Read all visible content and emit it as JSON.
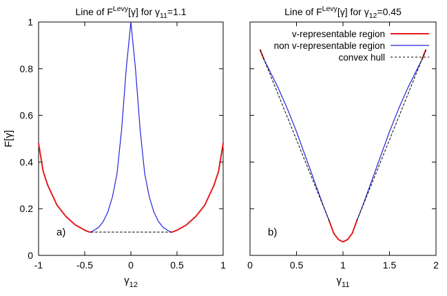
{
  "chart_data": [
    {
      "type": "line",
      "panel_tag": "a)",
      "title": {
        "pre": "Line of F",
        "sup": "Levy",
        "mid": "[γ] for γ",
        "sub": "11",
        "post": "=1.1"
      },
      "xlabel": {
        "main": "γ",
        "sub": "12"
      },
      "ylabel": "F[γ]",
      "xlim": [
        -1,
        1
      ],
      "ylim": [
        0,
        1
      ],
      "xticks": [
        -1,
        -0.5,
        0,
        0.5,
        1
      ],
      "xtick_labels": [
        "-1",
        "-0.5",
        "0",
        "0.5",
        "1"
      ],
      "yticks": [
        0,
        0.2,
        0.4,
        0.6,
        0.8,
        1
      ],
      "ytick_labels": [
        "0",
        "0.2",
        "0.4",
        "0.6",
        "0.8",
        "1"
      ],
      "series": [
        {
          "role": "v-representable",
          "color": "#e41a1c",
          "width": 2,
          "dash": "",
          "segments": [
            {
              "x": [
                -1.0,
                -0.95,
                -0.9,
                -0.8,
                -0.7,
                -0.6,
                -0.5,
                -0.45,
                -0.43
              ],
              "y": [
                0.48,
                0.36,
                0.3,
                0.215,
                0.165,
                0.13,
                0.108,
                0.1,
                0.1
              ]
            },
            {
              "x": [
                0.43,
                0.45,
                0.5,
                0.6,
                0.7,
                0.8,
                0.9,
                0.95,
                1.0
              ],
              "y": [
                0.1,
                0.1,
                0.108,
                0.13,
                0.165,
                0.215,
                0.3,
                0.36,
                0.48
              ]
            }
          ]
        },
        {
          "role": "non-v-representable",
          "color": "#2222dd",
          "width": 1.2,
          "dash": "",
          "segments": [
            {
              "x": [
                -0.43,
                -0.35,
                -0.3,
                -0.25,
                -0.2,
                -0.15,
                -0.1,
                -0.05,
                0.0,
                0.05,
                0.1,
                0.15,
                0.2,
                0.25,
                0.3,
                0.35,
                0.43
              ],
              "y": [
                0.1,
                0.12,
                0.145,
                0.185,
                0.25,
                0.35,
                0.54,
                0.8,
                1.0,
                0.8,
                0.54,
                0.35,
                0.25,
                0.185,
                0.145,
                0.12,
                0.1
              ]
            }
          ]
        },
        {
          "role": "convex-hull",
          "color": "#000000",
          "width": 1,
          "dash": "3,3",
          "segments": [
            {
              "x": [
                -0.43,
                0.43
              ],
              "y": [
                0.1,
                0.1
              ]
            }
          ]
        }
      ]
    },
    {
      "type": "line",
      "panel_tag": "b)",
      "title": {
        "pre": "Line of F",
        "sup": "Levy",
        "mid": "[γ] for γ",
        "sub": "12",
        "post": "=0.45"
      },
      "xlabel": {
        "main": "γ",
        "sub": "11"
      },
      "ylabel": "",
      "xlim": [
        0,
        2
      ],
      "ylim": [
        0,
        1
      ],
      "xticks": [
        0,
        0.5,
        1,
        1.5,
        2
      ],
      "xtick_labels": [
        "0",
        "0.5",
        "1",
        "1.5",
        "2"
      ],
      "yticks": [
        0,
        0.2,
        0.4,
        0.6,
        0.8,
        1
      ],
      "ytick_labels": [],
      "legend": {
        "position": "top-right",
        "entries": [
          {
            "label": "v-representable region",
            "color": "#e41a1c",
            "width": 2,
            "dash": ""
          },
          {
            "label": "non v-representable region",
            "color": "#2222dd",
            "width": 1.2,
            "dash": ""
          },
          {
            "label": "convex hull",
            "color": "#000000",
            "width": 1,
            "dash": "3,3"
          }
        ]
      },
      "series": [
        {
          "role": "v-representable",
          "color": "#e41a1c",
          "width": 2,
          "dash": "",
          "segments": [
            {
              "x": [
                0.11,
                0.13,
                0.15
              ],
              "y": [
                0.88,
                0.86,
                0.84
              ]
            },
            {
              "x": [
                0.85,
                0.9,
                0.95,
                1.0,
                1.05,
                1.1,
                1.15
              ],
              "y": [
                0.15,
                0.095,
                0.068,
                0.058,
                0.068,
                0.095,
                0.15
              ]
            },
            {
              "x": [
                1.85,
                1.87,
                1.89
              ],
              "y": [
                0.84,
                0.86,
                0.88
              ]
            }
          ]
        },
        {
          "role": "non-v-representable",
          "color": "#2222dd",
          "width": 1.2,
          "dash": "",
          "segments": [
            {
              "x": [
                0.15,
                0.2,
                0.3,
                0.4,
                0.5,
                0.6,
                0.7,
                0.8,
                0.85
              ],
              "y": [
                0.84,
                0.8,
                0.72,
                0.63,
                0.53,
                0.42,
                0.31,
                0.2,
                0.15
              ]
            },
            {
              "x": [
                1.15,
                1.2,
                1.3,
                1.4,
                1.5,
                1.6,
                1.7,
                1.8,
                1.85
              ],
              "y": [
                0.15,
                0.2,
                0.31,
                0.42,
                0.53,
                0.63,
                0.72,
                0.8,
                0.84
              ]
            }
          ]
        },
        {
          "role": "convex-hull",
          "color": "#000000",
          "width": 1,
          "dash": "3,3",
          "segments": [
            {
              "x": [
                0.11,
                0.85
              ],
              "y": [
                0.88,
                0.15
              ]
            },
            {
              "x": [
                1.15,
                1.89
              ],
              "y": [
                0.15,
                0.88
              ]
            }
          ]
        }
      ]
    }
  ]
}
